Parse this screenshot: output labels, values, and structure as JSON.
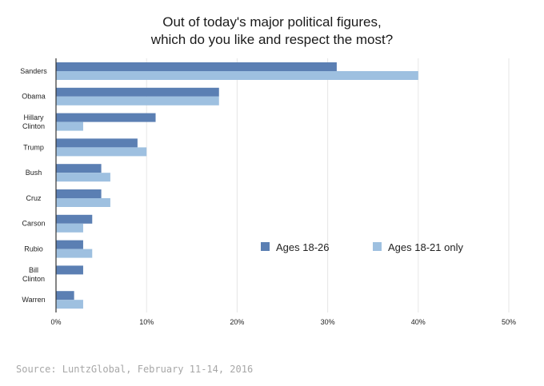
{
  "chart_data": {
    "type": "bar",
    "orientation": "horizontal",
    "title": [
      "Out of today's major political figures,",
      "which do you like and respect the most?"
    ],
    "categories": [
      [
        "Sanders"
      ],
      [
        "Obama"
      ],
      [
        "Hillary",
        "Clinton"
      ],
      [
        "Trump"
      ],
      [
        "Bush"
      ],
      [
        "Cruz"
      ],
      [
        "Carson"
      ],
      [
        "Rubio"
      ],
      [
        "Bill",
        "Clinton"
      ],
      [
        "Warren"
      ]
    ],
    "series": [
      {
        "name": "Ages 18-26",
        "color": "#5b7fb3",
        "values": [
          31,
          18,
          11,
          9,
          5,
          5,
          4,
          3,
          3,
          2
        ]
      },
      {
        "name": "Ages 18-21 only",
        "color": "#9ec0e0",
        "values": [
          40,
          18,
          3,
          10,
          6,
          6,
          3,
          4,
          0,
          3
        ]
      }
    ],
    "xlim": [
      0,
      50
    ],
    "xticks": [
      0,
      10,
      20,
      30,
      40,
      50
    ],
    "xtick_labels": [
      "0%",
      "10%",
      "20%",
      "30%",
      "40%",
      "50%"
    ],
    "grid": true,
    "legend_position": "right-middle"
  },
  "source": "Source: LuntzGlobal, February 11-14, 2016"
}
